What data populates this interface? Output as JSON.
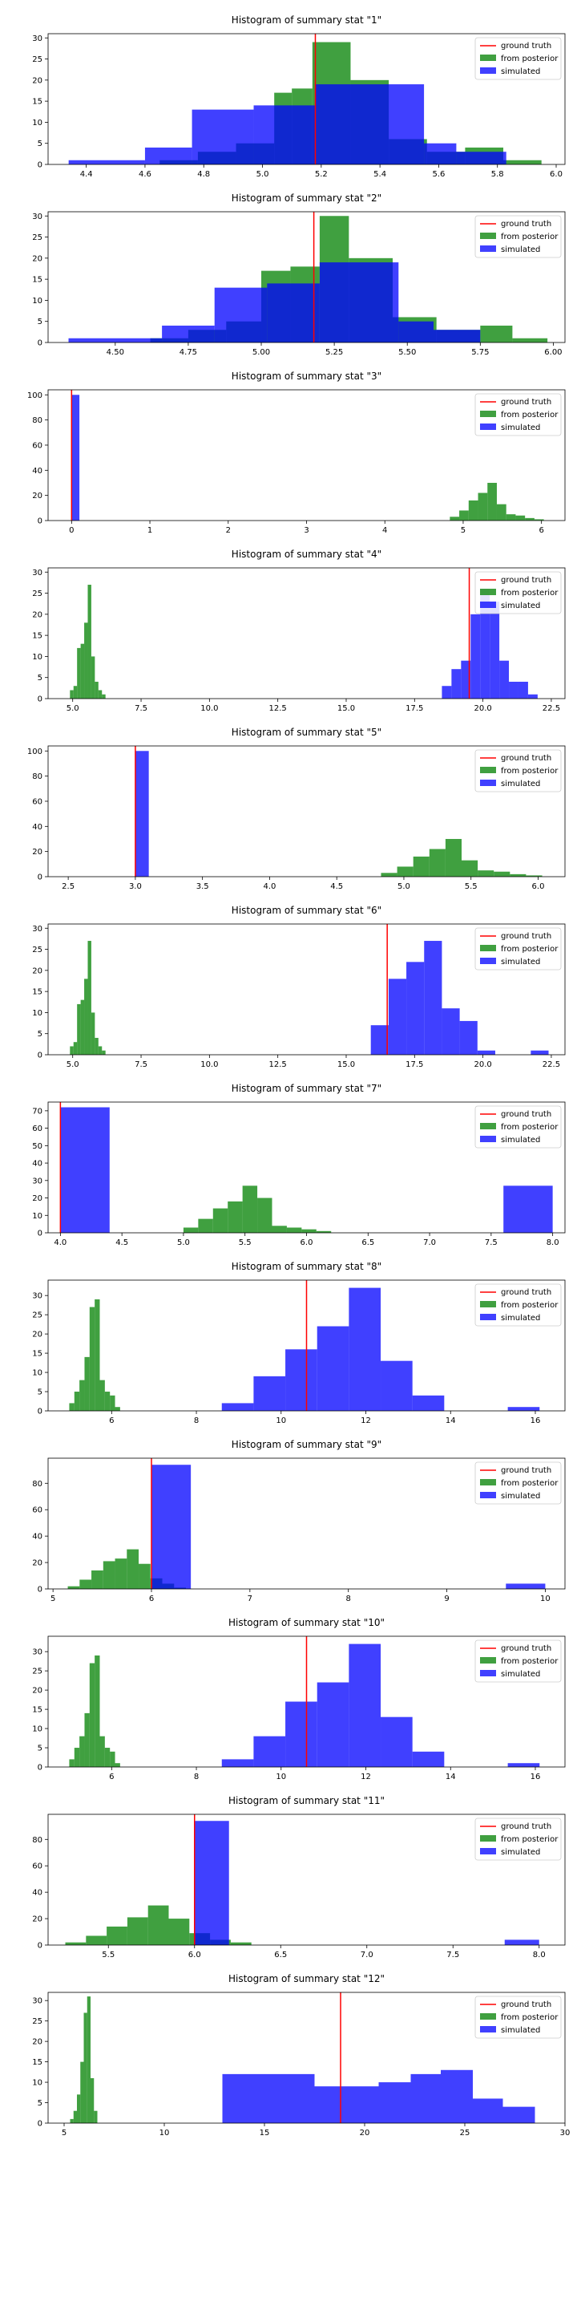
{
  "figure": {
    "legend": {
      "labels": [
        "ground truth",
        "from posterior",
        "simulated"
      ],
      "colors": [
        "#ff0000",
        "#008000",
        "#0000ff"
      ],
      "placement": "upper right"
    }
  },
  "chart_data": [
    {
      "type": "histogram",
      "title": "Histogram of summary stat \"1\"",
      "xlim": [
        4.27,
        6.03
      ],
      "ylim": [
        0,
        31
      ],
      "xticks": [
        4.4,
        4.6,
        4.8,
        5.0,
        5.2,
        5.4,
        5.6,
        5.8,
        6.0
      ],
      "xtick_labels": [
        "4.4",
        "4.6",
        "4.8",
        "5.0",
        "5.2",
        "5.4",
        "5.6",
        "5.8",
        "6.0"
      ],
      "yticks": [
        0,
        5,
        10,
        15,
        20,
        25,
        30
      ],
      "ytick_labels": [
        "0",
        "5",
        "10",
        "15",
        "20",
        "25",
        "30"
      ],
      "ground_truth": 5.18,
      "posterior": {
        "edges": [
          4.65,
          4.78,
          4.91,
          5.04,
          5.1,
          5.17,
          5.3,
          5.43,
          5.56,
          5.69,
          5.82,
          5.95
        ],
        "counts": [
          1,
          3,
          5,
          17,
          18,
          29,
          20,
          6,
          3,
          4,
          1
        ]
      },
      "simulated": {
        "edges": [
          4.34,
          4.6,
          4.76,
          4.97,
          5.18,
          5.55,
          5.66,
          5.83
        ],
        "counts": [
          1,
          4,
          13,
          14,
          19,
          5,
          3
        ]
      }
    },
    {
      "type": "histogram",
      "title": "Histogram of summary stat \"2\"",
      "xlim": [
        4.27,
        6.04
      ],
      "ylim": [
        0,
        31
      ],
      "xticks": [
        4.5,
        4.75,
        5.0,
        5.25,
        5.5,
        5.75,
        6.0
      ],
      "xtick_labels": [
        "4.50",
        "4.75",
        "5.00",
        "5.25",
        "5.50",
        "5.75",
        "6.00"
      ],
      "yticks": [
        0,
        5,
        10,
        15,
        20,
        25,
        30
      ],
      "ytick_labels": [
        "0",
        "5",
        "10",
        "15",
        "20",
        "25",
        "30"
      ],
      "ground_truth": 5.18,
      "posterior": {
        "edges": [
          4.62,
          4.75,
          4.88,
          5.0,
          5.1,
          5.2,
          5.3,
          5.45,
          5.6,
          5.75,
          5.86,
          5.98
        ],
        "counts": [
          1,
          3,
          5,
          17,
          18,
          30,
          20,
          6,
          3,
          4,
          1
        ]
      },
      "simulated": {
        "edges": [
          4.34,
          4.66,
          4.84,
          5.02,
          5.2,
          5.47,
          5.59,
          5.75
        ],
        "counts": [
          1,
          4,
          13,
          14,
          19,
          5,
          3
        ]
      }
    },
    {
      "type": "histogram",
      "title": "Histogram of summary stat \"3\"",
      "xlim": [
        -0.3,
        6.3
      ],
      "ylim": [
        0,
        104
      ],
      "xticks": [
        0,
        1,
        2,
        3,
        4,
        5,
        6
      ],
      "xtick_labels": [
        "0",
        "1",
        "2",
        "3",
        "4",
        "5",
        "6"
      ],
      "yticks": [
        0,
        20,
        40,
        60,
        80,
        100
      ],
      "ytick_labels": [
        "0",
        "20",
        "40",
        "60",
        "80",
        "100"
      ],
      "ground_truth": 0.0,
      "posterior": {
        "edges": [
          4.83,
          4.95,
          5.07,
          5.19,
          5.31,
          5.43,
          5.55,
          5.67,
          5.79,
          5.91,
          6.03
        ],
        "counts": [
          3,
          8,
          16,
          22,
          30,
          13,
          5,
          4,
          2,
          1
        ]
      },
      "simulated": {
        "edges": [
          0.0,
          0.1
        ],
        "counts": [
          100
        ]
      }
    },
    {
      "type": "histogram",
      "title": "Histogram of summary stat \"4\"",
      "xlim": [
        4.1,
        23.0
      ],
      "ylim": [
        0,
        31
      ],
      "xticks": [
        5.0,
        7.5,
        10.0,
        12.5,
        15.0,
        17.5,
        20.0,
        22.5
      ],
      "xtick_labels": [
        "5.0",
        "7.5",
        "10.0",
        "12.5",
        "15.0",
        "17.5",
        "20.0",
        "22.5"
      ],
      "yticks": [
        0,
        5,
        10,
        15,
        20,
        25,
        30
      ],
      "ytick_labels": [
        "0",
        "5",
        "10",
        "15",
        "20",
        "25",
        "30"
      ],
      "ground_truth": 19.5,
      "posterior": {
        "edges": [
          4.9,
          5.03,
          5.16,
          5.29,
          5.42,
          5.55,
          5.68,
          5.81,
          5.94,
          6.07,
          6.2
        ],
        "counts": [
          2,
          3,
          12,
          13,
          18,
          27,
          10,
          4,
          2,
          1
        ]
      },
      "simulated": {
        "edges": [
          18.5,
          18.85,
          19.2,
          19.55,
          19.9,
          20.25,
          20.6,
          20.95,
          21.3,
          21.65,
          22.0
        ],
        "counts": [
          3,
          7,
          9,
          20,
          26,
          23,
          9,
          4,
          4,
          1
        ]
      }
    },
    {
      "type": "histogram",
      "title": "Histogram of summary stat \"5\"",
      "xlim": [
        2.35,
        6.2
      ],
      "ylim": [
        0,
        104
      ],
      "xticks": [
        2.5,
        3.0,
        3.5,
        4.0,
        4.5,
        5.0,
        5.5,
        6.0
      ],
      "xtick_labels": [
        "2.5",
        "3.0",
        "3.5",
        "4.0",
        "4.5",
        "5.0",
        "5.5",
        "6.0"
      ],
      "yticks": [
        0,
        20,
        40,
        60,
        80,
        100
      ],
      "ytick_labels": [
        "0",
        "20",
        "40",
        "60",
        "80",
        "100"
      ],
      "ground_truth": 3.0,
      "posterior": {
        "edges": [
          4.83,
          4.95,
          5.07,
          5.19,
          5.31,
          5.43,
          5.55,
          5.67,
          5.79,
          5.91,
          6.03
        ],
        "counts": [
          3,
          8,
          16,
          22,
          30,
          13,
          5,
          4,
          2,
          1
        ]
      },
      "simulated": {
        "edges": [
          3.0,
          3.1
        ],
        "counts": [
          100
        ]
      }
    },
    {
      "type": "histogram",
      "title": "Histogram of summary stat \"6\"",
      "xlim": [
        4.1,
        23.0
      ],
      "ylim": [
        0,
        31
      ],
      "xticks": [
        5.0,
        7.5,
        10.0,
        12.5,
        15.0,
        17.5,
        20.0,
        22.5
      ],
      "xtick_labels": [
        "5.0",
        "7.5",
        "10.0",
        "12.5",
        "15.0",
        "17.5",
        "20.0",
        "22.5"
      ],
      "yticks": [
        0,
        5,
        10,
        15,
        20,
        25,
        30
      ],
      "ytick_labels": [
        "0",
        "5",
        "10",
        "15",
        "20",
        "25",
        "30"
      ],
      "ground_truth": 16.5,
      "posterior": {
        "edges": [
          4.9,
          5.03,
          5.16,
          5.29,
          5.42,
          5.55,
          5.68,
          5.81,
          5.94,
          6.07,
          6.2
        ],
        "counts": [
          2,
          3,
          12,
          13,
          18,
          27,
          10,
          4,
          2,
          1
        ]
      },
      "simulated": {
        "edges": [
          15.9,
          16.55,
          17.2,
          17.85,
          18.5,
          19.15,
          19.8,
          20.45,
          21.1,
          21.75,
          22.4
        ],
        "counts": [
          7,
          18,
          22,
          27,
          11,
          8,
          1,
          0,
          0,
          1
        ]
      }
    },
    {
      "type": "histogram",
      "title": "Histogram of summary stat \"7\"",
      "xlim": [
        3.9,
        8.1
      ],
      "ylim": [
        0,
        75
      ],
      "xticks": [
        4.0,
        4.5,
        5.0,
        5.5,
        6.0,
        6.5,
        7.0,
        7.5,
        8.0
      ],
      "xtick_labels": [
        "4.0",
        "4.5",
        "5.0",
        "5.5",
        "6.0",
        "6.5",
        "7.0",
        "7.5",
        "8.0"
      ],
      "yticks": [
        0,
        10,
        20,
        30,
        40,
        50,
        60,
        70
      ],
      "ytick_labels": [
        "0",
        "10",
        "20",
        "30",
        "40",
        "50",
        "60",
        "70"
      ],
      "ground_truth": 4.0,
      "posterior": {
        "edges": [
          5.0,
          5.12,
          5.24,
          5.36,
          5.48,
          5.6,
          5.72,
          5.84,
          5.96,
          6.08,
          6.2
        ],
        "counts": [
          3,
          8,
          14,
          18,
          27,
          20,
          4,
          3,
          2,
          1
        ]
      },
      "simulated": {
        "edges": [
          4.0,
          4.4,
          4.8,
          5.2,
          5.6,
          6.0,
          6.4,
          6.8,
          7.2,
          7.6,
          8.0
        ],
        "counts": [
          72,
          0,
          0,
          0,
          0,
          0,
          0,
          0,
          0,
          27
        ]
      }
    },
    {
      "type": "histogram",
      "title": "Histogram of summary stat \"8\"",
      "xlim": [
        4.5,
        16.7
      ],
      "ylim": [
        0,
        34
      ],
      "xticks": [
        6,
        8,
        10,
        12,
        14,
        16
      ],
      "xtick_labels": [
        "6",
        "8",
        "10",
        "12",
        "14",
        "16"
      ],
      "yticks": [
        0,
        5,
        10,
        15,
        20,
        25,
        30
      ],
      "ytick_labels": [
        "0",
        "5",
        "10",
        "15",
        "20",
        "25",
        "30"
      ],
      "ground_truth": 10.6,
      "posterior": {
        "edges": [
          5.0,
          5.12,
          5.24,
          5.36,
          5.48,
          5.6,
          5.72,
          5.84,
          5.96,
          6.08,
          6.2
        ],
        "counts": [
          2,
          5,
          8,
          14,
          27,
          29,
          8,
          5,
          4,
          1
        ]
      },
      "simulated": {
        "edges": [
          8.6,
          9.35,
          10.1,
          10.85,
          11.6,
          12.35,
          13.1,
          13.85,
          14.6,
          15.35,
          16.1
        ],
        "counts": [
          2,
          9,
          16,
          22,
          32,
          13,
          4,
          0,
          0,
          1
        ]
      }
    },
    {
      "type": "histogram",
      "title": "Histogram of summary stat \"9\"",
      "xlim": [
        4.95,
        10.2
      ],
      "ylim": [
        0,
        99
      ],
      "xticks": [
        5,
        6,
        7,
        8,
        9,
        10
      ],
      "xtick_labels": [
        "5",
        "6",
        "7",
        "8",
        "9",
        "10"
      ],
      "yticks": [
        0,
        20,
        40,
        60,
        80
      ],
      "ytick_labels": [
        "0",
        "20",
        "40",
        "60",
        "80"
      ],
      "ground_truth": 6.0,
      "posterior": {
        "edges": [
          5.15,
          5.27,
          5.39,
          5.51,
          5.63,
          5.75,
          5.87,
          5.99,
          6.11,
          6.23,
          6.35
        ],
        "counts": [
          2,
          7,
          14,
          21,
          23,
          30,
          19,
          8,
          4,
          1
        ]
      },
      "simulated": {
        "edges": [
          6.0,
          6.4,
          6.8,
          7.2,
          7.6,
          8.0,
          8.4,
          8.8,
          9.2,
          9.6,
          10.0
        ],
        "counts": [
          94,
          0,
          0,
          0,
          0,
          0,
          0,
          0,
          0,
          4
        ]
      }
    },
    {
      "type": "histogram",
      "title": "Histogram of summary stat \"10\"",
      "xlim": [
        4.5,
        16.7
      ],
      "ylim": [
        0,
        34
      ],
      "xticks": [
        6,
        8,
        10,
        12,
        14,
        16
      ],
      "xtick_labels": [
        "6",
        "8",
        "10",
        "12",
        "14",
        "16"
      ],
      "yticks": [
        0,
        5,
        10,
        15,
        20,
        25,
        30
      ],
      "ytick_labels": [
        "0",
        "5",
        "10",
        "15",
        "20",
        "25",
        "30"
      ],
      "ground_truth": 10.6,
      "posterior": {
        "edges": [
          5.0,
          5.12,
          5.24,
          5.36,
          5.48,
          5.6,
          5.72,
          5.84,
          5.96,
          6.08,
          6.2
        ],
        "counts": [
          2,
          5,
          8,
          14,
          27,
          29,
          8,
          5,
          4,
          1
        ]
      },
      "simulated": {
        "edges": [
          8.6,
          9.35,
          10.1,
          10.85,
          11.6,
          12.35,
          13.1,
          13.85,
          14.6,
          15.35,
          16.1
        ],
        "counts": [
          2,
          8,
          17,
          22,
          32,
          13,
          4,
          0,
          0,
          1
        ]
      }
    },
    {
      "type": "histogram",
      "title": "Histogram of summary stat \"11\"",
      "xlim": [
        5.15,
        8.15
      ],
      "ylim": [
        0,
        99
      ],
      "xticks": [
        5.5,
        6.0,
        6.5,
        7.0,
        7.5,
        8.0
      ],
      "xtick_labels": [
        "5.5",
        "6.0",
        "6.5",
        "7.0",
        "7.5",
        "8.0"
      ],
      "yticks": [
        0,
        20,
        40,
        60,
        80
      ],
      "ytick_labels": [
        "0",
        "20",
        "40",
        "60",
        "80"
      ],
      "ground_truth": 6.0,
      "posterior": {
        "edges": [
          5.25,
          5.37,
          5.49,
          5.61,
          5.73,
          5.85,
          5.97,
          6.09,
          6.21,
          6.33
        ],
        "counts": [
          2,
          7,
          14,
          21,
          30,
          20,
          9,
          4,
          2
        ]
      },
      "simulated": {
        "edges": [
          6.0,
          6.2,
          6.4,
          6.6,
          6.8,
          7.0,
          7.2,
          7.4,
          7.6,
          7.8,
          8.0
        ],
        "counts": [
          94,
          0,
          0,
          0,
          0,
          0,
          0,
          0,
          0,
          4
        ]
      }
    },
    {
      "type": "histogram",
      "title": "Histogram of summary stat \"12\"",
      "xlim": [
        4.2,
        30.0
      ],
      "ylim": [
        0,
        32
      ],
      "xticks": [
        5,
        10,
        15,
        20,
        25,
        30
      ],
      "xtick_labels": [
        "5",
        "10",
        "15",
        "20",
        "25",
        "30"
      ],
      "yticks": [
        0,
        5,
        10,
        15,
        20,
        25,
        30
      ],
      "ytick_labels": [
        "0",
        "5",
        "10",
        "15",
        "20",
        "25",
        "30"
      ],
      "ground_truth": 18.8,
      "posterior": {
        "edges": [
          5.3,
          5.47,
          5.64,
          5.81,
          5.98,
          6.15,
          6.32,
          6.49,
          6.66
        ],
        "counts": [
          1,
          3,
          7,
          15,
          27,
          31,
          11,
          3
        ]
      },
      "simulated": {
        "edges": [
          12.9,
          17.5,
          19.1,
          20.7,
          22.3,
          23.8,
          25.4,
          26.9,
          28.5
        ],
        "counts": [
          12,
          9,
          9,
          10,
          12,
          13,
          6,
          4
        ]
      }
    }
  ]
}
